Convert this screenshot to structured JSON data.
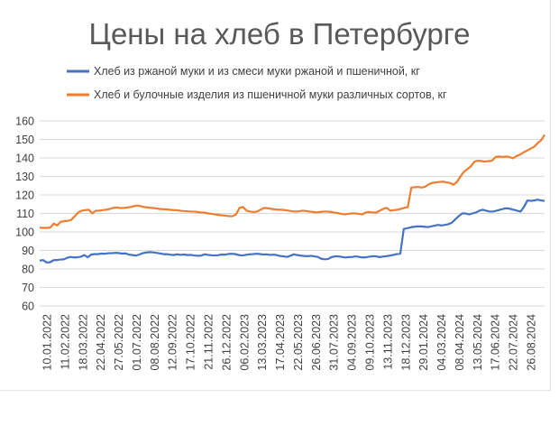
{
  "chart_data": {
    "type": "line",
    "title": "Цены на хлеб в Петербурге",
    "xlabel": "",
    "ylabel": "",
    "ylim": [
      60,
      160
    ],
    "yticks": [
      60,
      70,
      80,
      90,
      100,
      110,
      120,
      130,
      140,
      150,
      160
    ],
    "x_tick_labels": [
      "10.01.2022",
      "11.02.2022",
      "18.03.2022",
      "22.04.2022",
      "27.05.2022",
      "01.07.2022",
      "08.08.2022",
      "12.09.2022",
      "17.10.2022",
      "21.11.2022",
      "26.12.2022",
      "06.02.2023",
      "13.03.2023",
      "17.04.2023",
      "22.05.2023",
      "26.06.2023",
      "31.07.2023",
      "04.09.2023",
      "09.10.2023",
      "13.11.2023",
      "18.12.2023",
      "29.01.2024",
      "04.03.2024",
      "08.04.2024",
      "13.05.2024",
      "17.06.2024",
      "22.07.2024",
      "26.08.2024"
    ],
    "grid": "horizontal",
    "legend_position": "top",
    "series": [
      {
        "name": "Хлеб из ржаной муки и из смеси муки ржаной и пшеничной, кг",
        "color": "#4472c4",
        "values": [
          84.5,
          84.8,
          83.5,
          83.6,
          84.7,
          84.8,
          85.1,
          85.2,
          86.0,
          86.5,
          86.2,
          86.3,
          86.6,
          87.5,
          86.3,
          87.8,
          88.0,
          88.0,
          88.3,
          88.2,
          88.5,
          88.5,
          88.7,
          88.6,
          88.3,
          88.4,
          87.7,
          87.5,
          87.2,
          87.8,
          88.5,
          88.9,
          89.1,
          89.0,
          88.7,
          88.4,
          88.0,
          88.0,
          87.7,
          87.5,
          87.9,
          87.6,
          87.8,
          87.5,
          87.6,
          87.3,
          87.1,
          87.2,
          87.9,
          87.6,
          87.4,
          87.3,
          87.4,
          87.8,
          87.7,
          88.1,
          88.2,
          88.0,
          87.5,
          87.3,
          87.6,
          87.9,
          88.0,
          88.2,
          88.1,
          87.8,
          87.9,
          87.6,
          87.7,
          87.5,
          87.0,
          86.8,
          86.5,
          87.1,
          87.9,
          87.5,
          87.2,
          87.0,
          86.9,
          87.1,
          86.8,
          86.5,
          85.5,
          85.2,
          85.4,
          86.4,
          86.8,
          86.8,
          86.5,
          86.2,
          86.4,
          86.5,
          86.8,
          86.5,
          86.2,
          86.3,
          86.6,
          86.9,
          86.8,
          86.4,
          86.7,
          86.9,
          87.2,
          87.6,
          88.0,
          88.3,
          101.6,
          102.0,
          102.5,
          102.8,
          103.0,
          103.0,
          102.8,
          102.6,
          103.0,
          103.4,
          103.8,
          103.5,
          103.8,
          104.2,
          105.0,
          106.8,
          108.5,
          110.0,
          110.0,
          109.5,
          110.0,
          110.5,
          111.5,
          112.0,
          111.5,
          111.0,
          111.0,
          111.5,
          112.0,
          112.5,
          112.8,
          112.5,
          112.0,
          111.5,
          111.0,
          113.5,
          117.0,
          116.8,
          117.0,
          117.5,
          117.0,
          116.8
        ]
      },
      {
        "name": "Хлеб и булочные изделия из пшеничной муки различных сортов, кг",
        "color": "#ed7d31",
        "values": [
          102.3,
          102.2,
          102.2,
          102.3,
          104.5,
          103.5,
          105.5,
          105.8,
          106.0,
          106.5,
          108.5,
          110.5,
          111.5,
          111.8,
          112.0,
          110.0,
          111.5,
          111.5,
          111.8,
          112.0,
          112.5,
          113.0,
          113.2,
          112.9,
          113.0,
          113.2,
          113.5,
          114.0,
          114.3,
          113.8,
          113.4,
          113.2,
          113.0,
          112.8,
          112.5,
          112.3,
          112.2,
          112.0,
          111.8,
          111.8,
          111.5,
          111.3,
          111.2,
          111.0,
          111.0,
          110.8,
          110.5,
          110.5,
          110.0,
          109.8,
          109.5,
          109.2,
          109.0,
          108.8,
          108.5,
          108.5,
          109.5,
          113.0,
          113.5,
          111.5,
          111.0,
          110.8,
          111.0,
          112.0,
          113.0,
          112.8,
          112.5,
          112.2,
          112.0,
          112.0,
          111.8,
          111.5,
          111.2,
          111.0,
          111.2,
          111.5,
          111.3,
          111.0,
          110.8,
          110.5,
          110.8,
          111.0,
          111.0,
          110.8,
          110.5,
          110.2,
          109.8,
          109.5,
          109.8,
          110.0,
          110.0,
          109.8,
          109.5,
          110.5,
          110.8,
          110.5,
          110.5,
          111.5,
          112.5,
          113.0,
          111.5,
          111.8,
          112.0,
          112.5,
          113.0,
          113.5,
          124.0,
          124.2,
          124.3,
          124.0,
          124.5,
          125.8,
          126.5,
          126.8,
          127.0,
          127.2,
          126.8,
          126.5,
          125.5,
          127.0,
          130.0,
          132.5,
          134.0,
          135.5,
          138.0,
          138.5,
          138.3,
          138.0,
          138.3,
          138.5,
          140.5,
          140.8,
          140.5,
          140.8,
          140.5,
          139.8,
          141.0,
          141.8,
          143.0,
          144.0,
          145.0,
          146.0,
          148.0,
          149.5,
          152.5
        ]
      }
    ]
  }
}
